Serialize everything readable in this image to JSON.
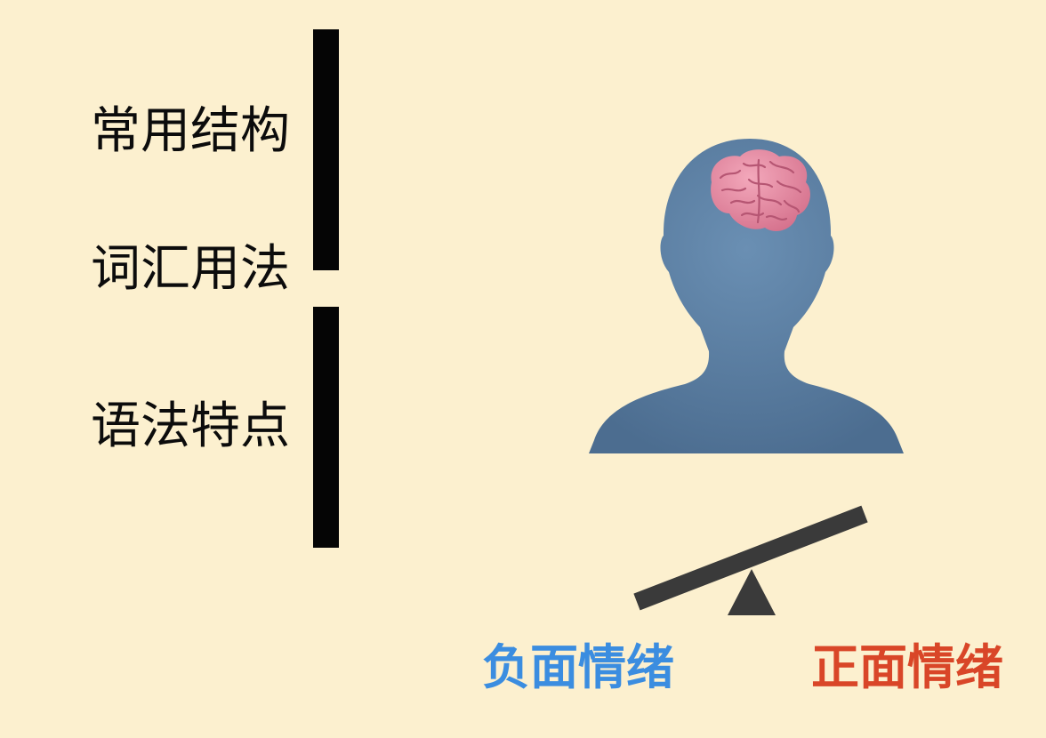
{
  "left_items": [
    {
      "label": "常用结构"
    },
    {
      "label": "词汇用法"
    },
    {
      "label": "语法特点"
    }
  ],
  "balance": {
    "left_label": "负面情绪",
    "right_label": "正面情绪",
    "left_color": "#3b8de0",
    "right_color": "#d94628",
    "beam_color": "#3a3a3a"
  },
  "figure": {
    "head_icon": "person-head-icon",
    "brain_icon": "brain-icon",
    "head_color": "#587c9f",
    "brain_color": "#e58aa2"
  }
}
